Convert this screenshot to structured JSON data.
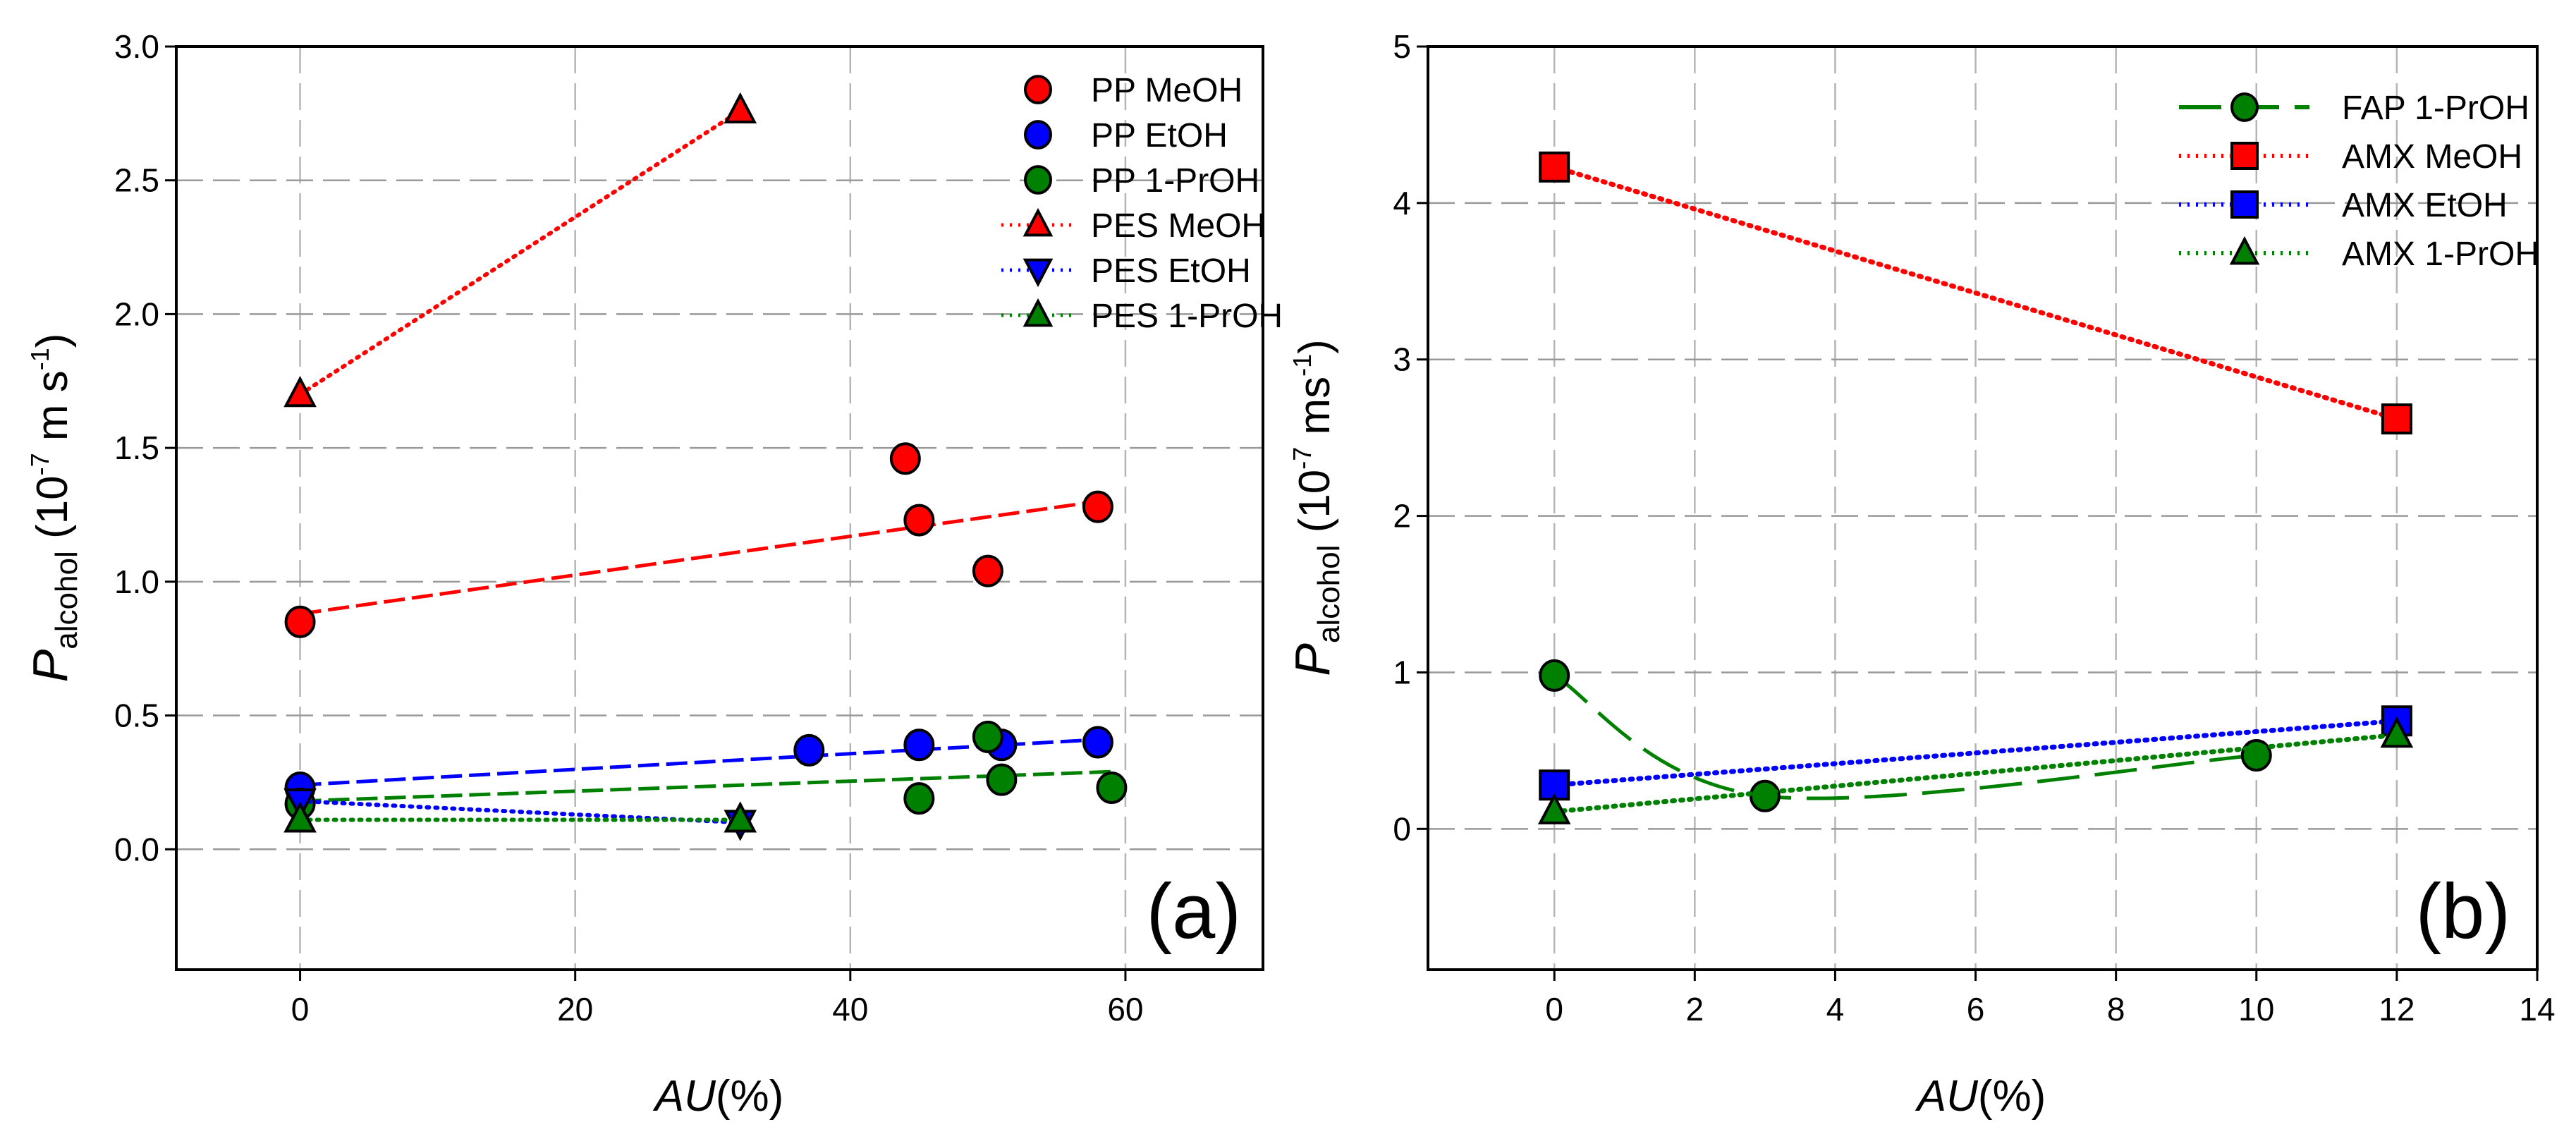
{
  "chart_data": [
    {
      "type": "scatter",
      "panel_label": "(a)",
      "xlabel_italic": "AU",
      "xlabel_rest": "(%)",
      "ylabel": {
        "symbol": "P",
        "subscript": "alcohol",
        "open": " (10",
        "exp1": "-7",
        "mid": " m s",
        "exp2": "-1",
        "close": ")"
      },
      "xlim": [
        -9,
        70
      ],
      "ylim": [
        -0.45,
        3.0
      ],
      "xticks": [
        0,
        20,
        40,
        60
      ],
      "yticks": [
        0.0,
        0.5,
        1.0,
        1.5,
        2.0,
        2.5,
        3.0
      ],
      "ytick_labels": [
        "0.0",
        "0.5",
        "1.0",
        "1.5",
        "2.0",
        "2.5",
        "3.0"
      ],
      "grid": true,
      "legend_position": "top-right",
      "series": [
        {
          "name": "PP MeOH",
          "color": "#ff0000",
          "marker": "circle",
          "line": "none",
          "x": [
            0,
            44,
            45,
            50,
            58
          ],
          "y": [
            0.85,
            1.46,
            1.23,
            1.04,
            1.28
          ],
          "trend": {
            "x": [
              0,
              58
            ],
            "y": [
              0.88,
              1.3
            ],
            "style": "dashed"
          }
        },
        {
          "name": "PP EtOH",
          "color": "#0000ff",
          "marker": "circle",
          "line": "none",
          "x": [
            0,
            37,
            45,
            51,
            58
          ],
          "y": [
            0.23,
            0.37,
            0.39,
            0.39,
            0.4
          ],
          "trend": {
            "x": [
              0,
              58
            ],
            "y": [
              0.24,
              0.41
            ],
            "style": "dashed"
          }
        },
        {
          "name": "PP 1-PrOH",
          "color": "#008000",
          "marker": "circle",
          "line": "none",
          "x": [
            0,
            45,
            50,
            51,
            59
          ],
          "y": [
            0.17,
            0.19,
            0.42,
            0.26,
            0.23
          ],
          "trend": {
            "x": [
              0,
              59
            ],
            "y": [
              0.18,
              0.29
            ],
            "style": "dashed"
          }
        },
        {
          "name": "PES MeOH",
          "color": "#ff0000",
          "marker": "triangle-up",
          "line": "dotted",
          "x": [
            0,
            32
          ],
          "y": [
            1.7,
            2.76
          ]
        },
        {
          "name": "PES EtOH",
          "color": "#0000ff",
          "marker": "triangle-down",
          "line": "dotted",
          "x": [
            0,
            32
          ],
          "y": [
            0.18,
            0.1
          ]
        },
        {
          "name": "PES 1-PrOH",
          "color": "#008000",
          "marker": "triangle-up",
          "line": "dotted",
          "x": [
            0,
            32
          ],
          "y": [
            0.11,
            0.11
          ]
        }
      ]
    },
    {
      "type": "line",
      "panel_label": "(b)",
      "xlabel_italic": "AU",
      "xlabel_rest": "(%)",
      "ylabel": {
        "symbol": "P",
        "subscript": "alcohol",
        "open": " (10",
        "exp1": "-7",
        "mid": " ms",
        "exp2": "-1",
        "close": ")"
      },
      "xlim": [
        -1.8,
        14
      ],
      "ylim": [
        -0.9,
        5
      ],
      "xticks": [
        0,
        2,
        4,
        6,
        8,
        10,
        12,
        14
      ],
      "yticks": [
        0,
        1,
        2,
        3,
        4,
        5
      ],
      "ytick_labels": [
        "0",
        "1",
        "2",
        "3",
        "4",
        "5"
      ],
      "grid": true,
      "legend_position": "top-right",
      "series": [
        {
          "name": "FAP 1-PrOH",
          "color": "#008000",
          "marker": "circle",
          "line": "long-dashed-smooth",
          "x": [
            0,
            3,
            10
          ],
          "y": [
            0.98,
            0.21,
            0.47
          ]
        },
        {
          "name": "AMX MeOH",
          "color": "#ff0000",
          "marker": "square",
          "line": "dotted",
          "x": [
            0,
            12
          ],
          "y": [
            4.23,
            2.62
          ]
        },
        {
          "name": "AMX EtOH",
          "color": "#0000ff",
          "marker": "square",
          "line": "dotted",
          "x": [
            0,
            12
          ],
          "y": [
            0.28,
            0.69
          ]
        },
        {
          "name": "AMX 1-PrOH",
          "color": "#008000",
          "marker": "triangle-up",
          "line": "dotted",
          "x": [
            0,
            12
          ],
          "y": [
            0.11,
            0.6
          ]
        }
      ]
    }
  ]
}
